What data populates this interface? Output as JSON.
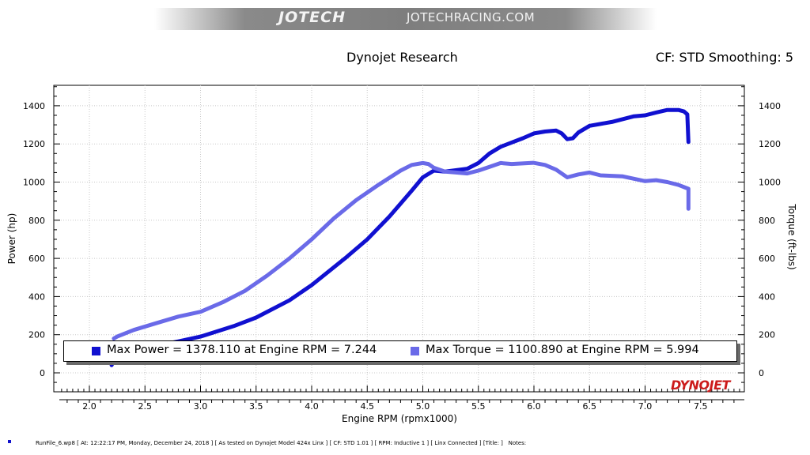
{
  "banner": {
    "logo": "JOTECH",
    "url": "JOTECHRACING.COM"
  },
  "header": {
    "title": "Dynojet Research",
    "cf": "CF: STD Smoothing: 5"
  },
  "footer": "RunFile_6.wp8 [ At: 12:22:17 PM, Monday, December 24, 2018 ] [ As tested on Dynojet Model 424x Linx ] [ CF: STD 1.01 ] [ RPM: Inductive 1 ] [ Linx Connected ] [Title: ]   Notes:",
  "brand": "DYNOJET",
  "legend": {
    "power": "Max Power = 1378.110 at Engine RPM = 7.244",
    "torque": "Max Torque = 1100.890 at Engine RPM = 5.994"
  },
  "colors": {
    "power": "#1010d0",
    "torque": "#6a6ae8"
  },
  "chart_data": {
    "type": "line",
    "xlabel": "Engine RPM (rpmx1000)",
    "ylabel": "Power (hp)",
    "y2label": "Torque (ft-lbs)",
    "xlim": [
      1.75,
      7.95
    ],
    "ylim": [
      -100,
      1520
    ],
    "xticks": [
      "2.0",
      "2.5",
      "3.0",
      "3.5",
      "4.0",
      "4.5",
      "5.0",
      "5.5",
      "6.0",
      "6.5",
      "7.0",
      "7.5"
    ],
    "xtick_values": [
      2.0,
      2.5,
      3.0,
      3.5,
      4.0,
      4.5,
      5.0,
      5.5,
      6.0,
      6.5,
      7.0,
      7.5
    ],
    "yticks": [
      0,
      200,
      400,
      600,
      800,
      1000,
      1200,
      1400
    ],
    "grid": true,
    "series": [
      {
        "key": "power",
        "x": [
          2.2,
          2.25,
          2.5,
          2.8,
          3.0,
          3.3,
          3.5,
          3.8,
          4.0,
          4.3,
          4.5,
          4.7,
          4.9,
          5.0,
          5.1,
          5.2,
          5.4,
          5.5,
          5.6,
          5.7,
          5.9,
          6.0,
          6.1,
          6.2,
          6.25,
          6.3,
          6.35,
          6.4,
          6.5,
          6.7,
          6.9,
          7.0,
          7.1,
          7.2,
          7.3,
          7.35,
          7.38,
          7.39
        ],
        "y": [
          40,
          100,
          130,
          165,
          190,
          245,
          290,
          380,
          460,
          600,
          700,
          820,
          955,
          1025,
          1060,
          1055,
          1070,
          1100,
          1150,
          1185,
          1230,
          1255,
          1265,
          1270,
          1255,
          1225,
          1230,
          1260,
          1295,
          1315,
          1345,
          1350,
          1365,
          1378,
          1378,
          1370,
          1355,
          1210
        ]
      },
      {
        "key": "torque",
        "x": [
          2.22,
          2.25,
          2.4,
          2.6,
          2.8,
          3.0,
          3.2,
          3.4,
          3.6,
          3.8,
          4.0,
          4.2,
          4.4,
          4.6,
          4.8,
          4.9,
          5.0,
          5.05,
          5.1,
          5.2,
          5.3,
          5.4,
          5.5,
          5.6,
          5.7,
          5.8,
          5.994,
          6.1,
          6.2,
          6.3,
          6.4,
          6.5,
          6.6,
          6.8,
          7.0,
          7.1,
          7.2,
          7.3,
          7.39,
          7.39
        ],
        "y": [
          180,
          190,
          225,
          260,
          295,
          320,
          370,
          430,
          510,
          600,
          700,
          810,
          905,
          985,
          1060,
          1090,
          1100,
          1095,
          1075,
          1055,
          1050,
          1045,
          1060,
          1080,
          1100,
          1095,
          1101,
          1090,
          1065,
          1025,
          1040,
          1050,
          1035,
          1030,
          1005,
          1010,
          1000,
          985,
          965,
          860
        ]
      }
    ]
  }
}
